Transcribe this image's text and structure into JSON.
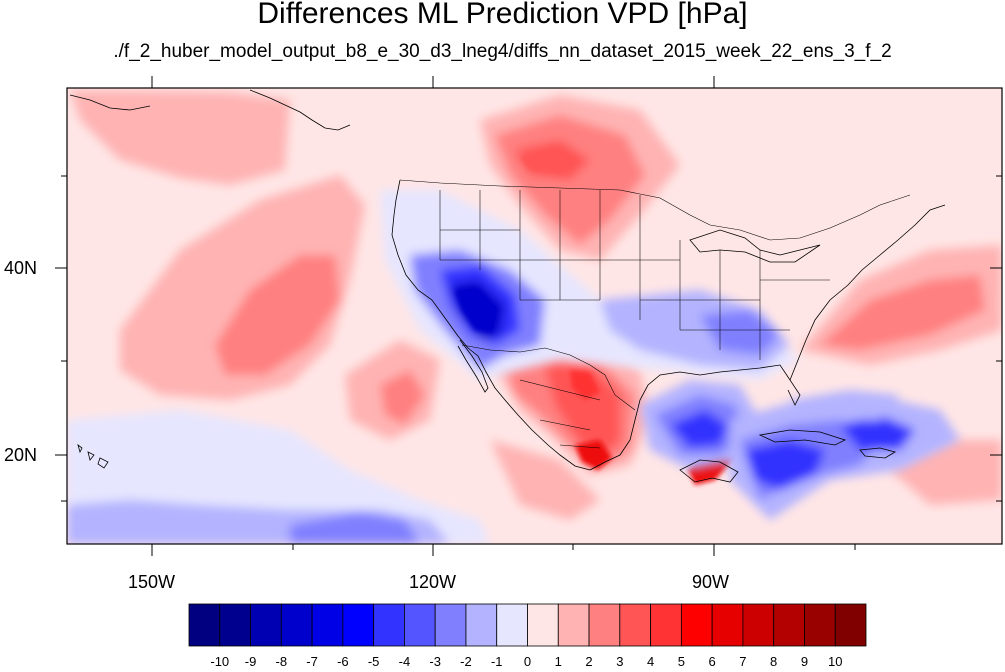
{
  "title": "Differences ML Prediction VPD [hPa]",
  "subtitle": "./f_2_huber_model_output_b8_e_30_d3_lneg4/diffs_nn_dataset_2015_week_22_ens_3_f_2",
  "lat_labels": [
    "40N",
    "20N"
  ],
  "lon_labels": [
    "150W",
    "120W",
    "90W"
  ],
  "colorbar": {
    "labels": [
      "-10",
      "-9",
      "-8",
      "-7",
      "-6",
      "-5",
      "-4",
      "-3",
      "-2",
      "-1",
      "0",
      "1",
      "2",
      "3",
      "4",
      "5",
      "6",
      "7",
      "8",
      "9",
      "10"
    ],
    "colors": [
      "#000080",
      "#00008f",
      "#0000b3",
      "#0000cc",
      "#0000e6",
      "#0000ff",
      "#3333ff",
      "#5555ff",
      "#8080ff",
      "#b3b3ff",
      "#e6e6ff",
      "#ffe6e6",
      "#ffb3b3",
      "#ff8080",
      "#ff5555",
      "#ff3333",
      "#ff0000",
      "#e60000",
      "#cc0000",
      "#b30000",
      "#990000",
      "#800000"
    ]
  },
  "field_colors": {
    "background": "#ffe6e6",
    "pos_light": "#ffb3b3",
    "pos_mid": "#ff8080",
    "pos_strong": "#ff5555",
    "pos_max": "#ee1111",
    "neg_light": "#e6e6ff",
    "neg_mid": "#b3b3ff",
    "neg_strong": "#8080ff",
    "neg_deep": "#3333ff",
    "neg_max": "#0000cc"
  }
}
